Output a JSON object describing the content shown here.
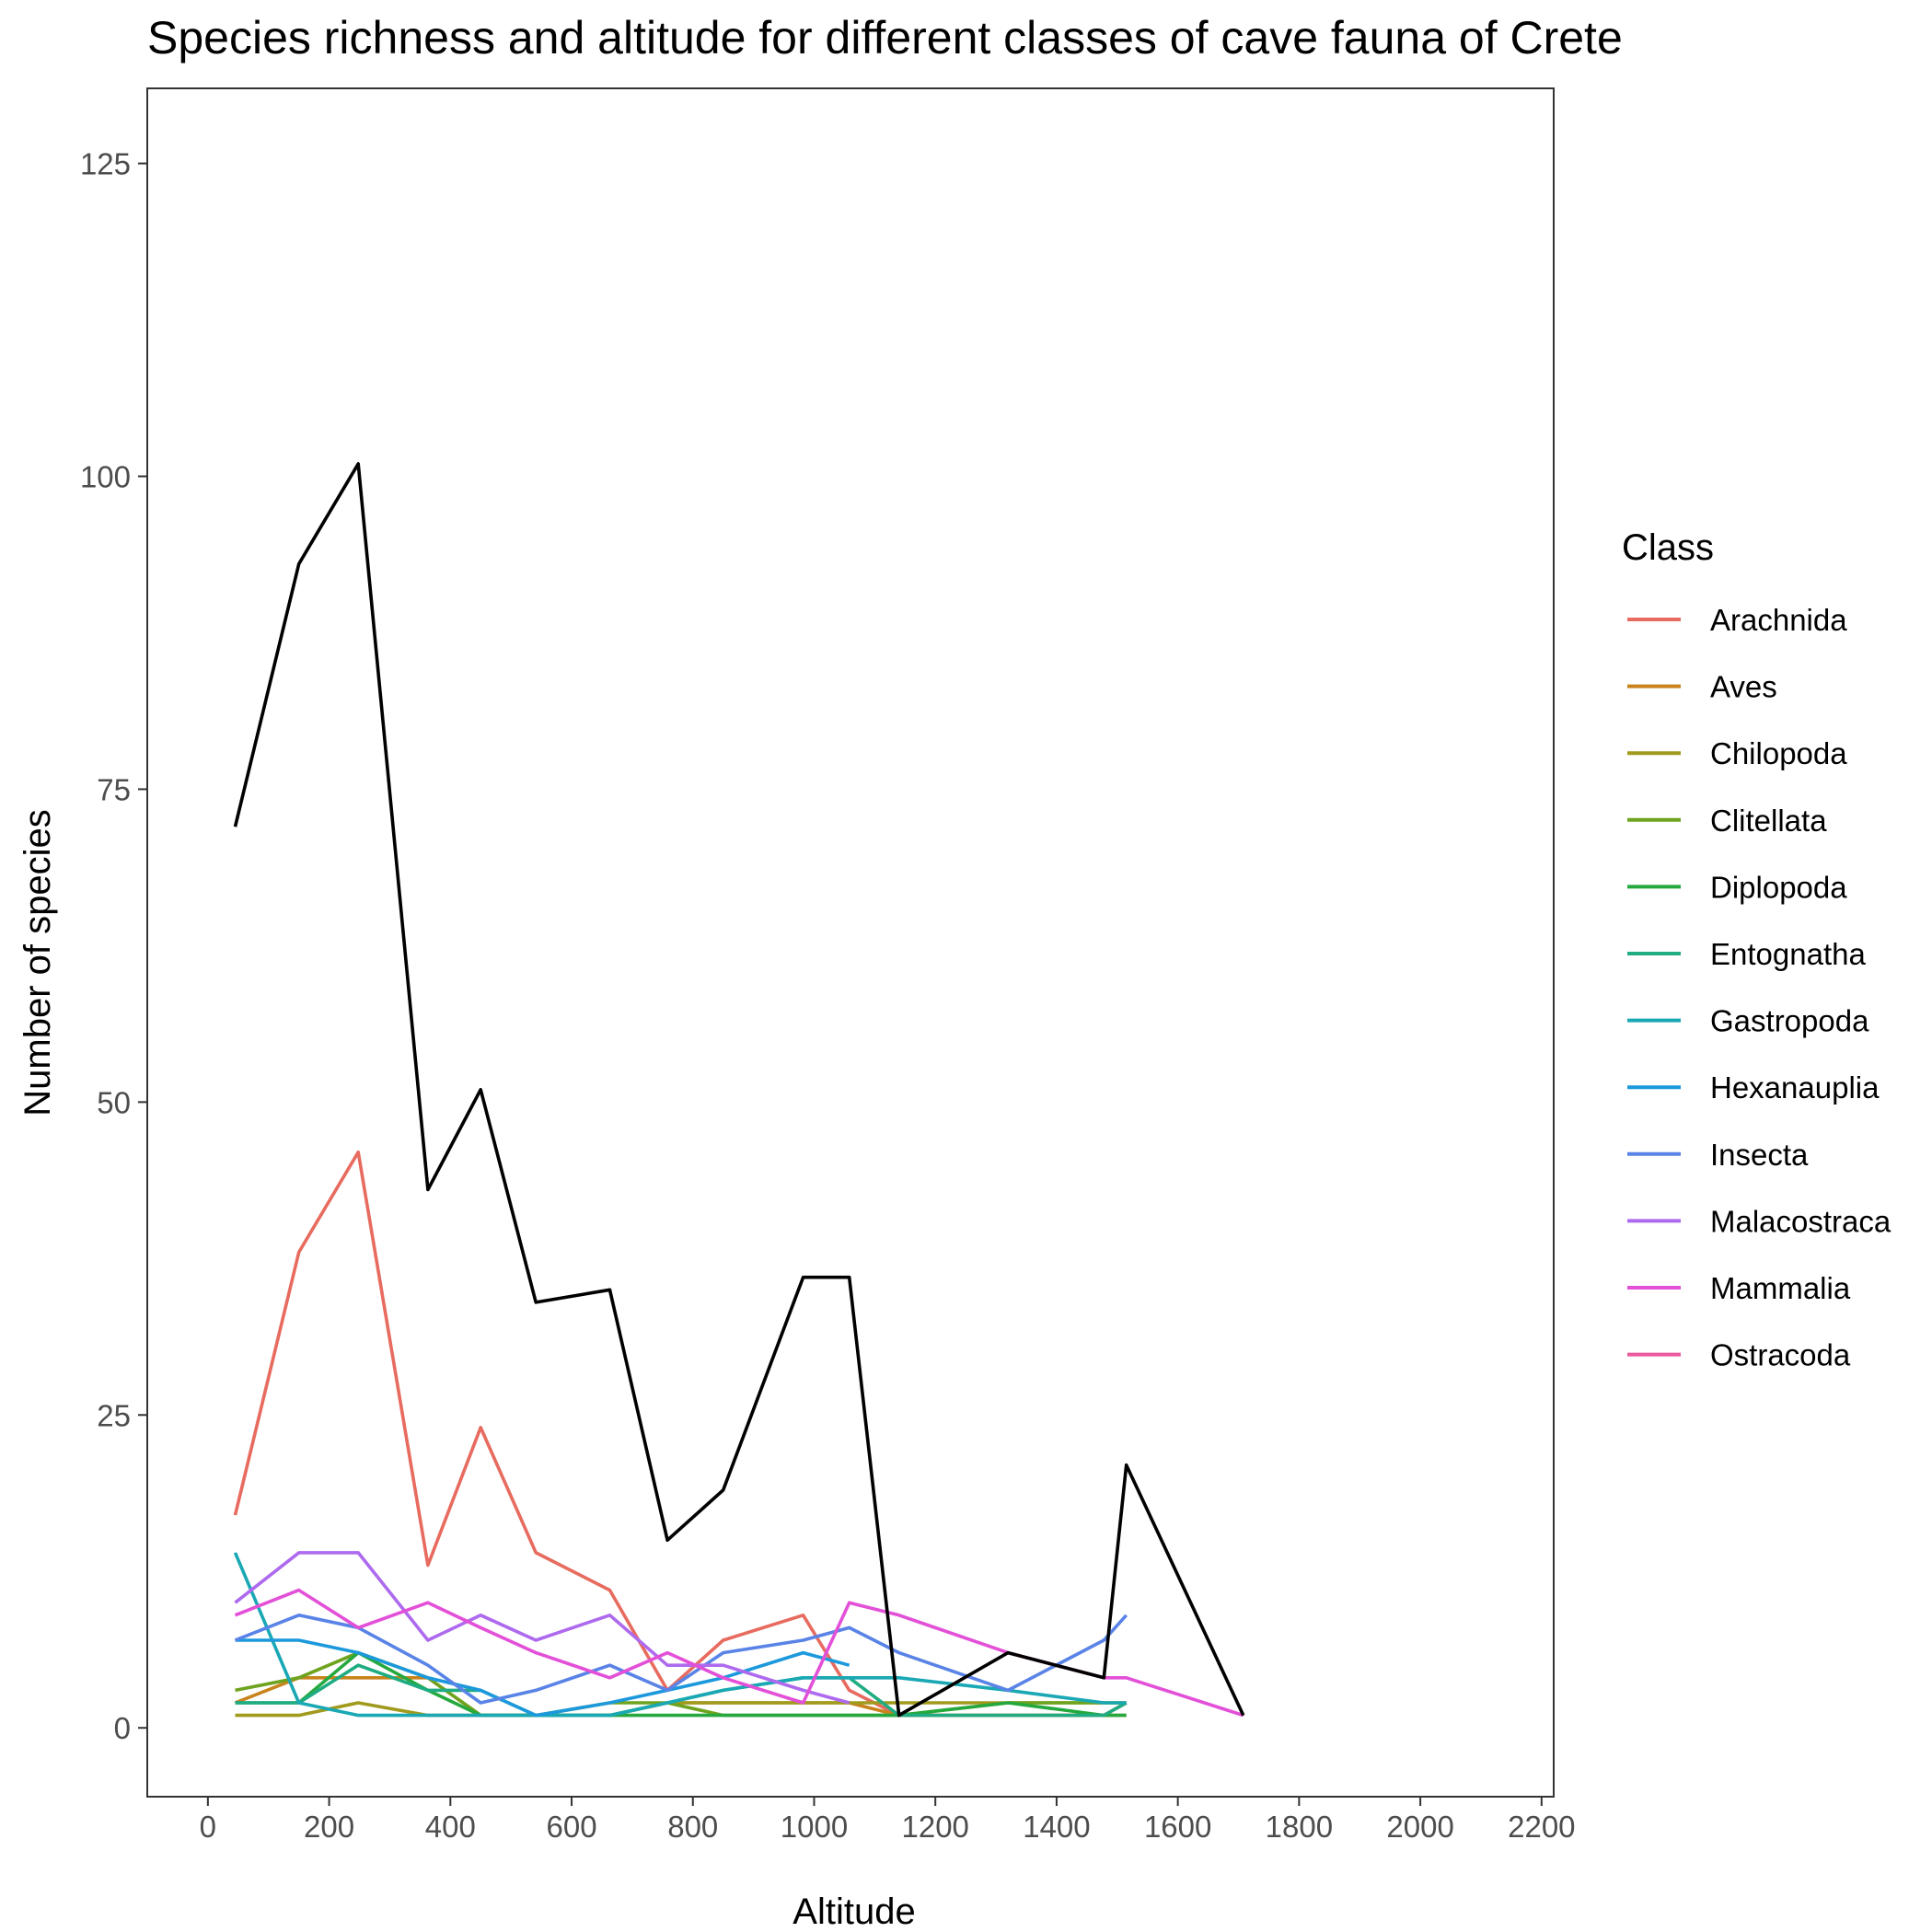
{
  "chart_data": {
    "type": "line",
    "title": "Species richness and altitude for different classes of cave fauna of Crete",
    "xlabel": "Altitude",
    "ylabel": "Number of species",
    "xlim": [
      -100,
      2220
    ],
    "ylim": [
      -5.5,
      131
    ],
    "x_ticks": [
      "0",
      "200",
      "400",
      "600",
      "800",
      "1000",
      "1200",
      "1400",
      "1600",
      "1800",
      "2000",
      "2200"
    ],
    "x_tick_values": [
      0,
      200,
      400,
      600,
      800,
      1000,
      1200,
      1400,
      1600,
      1800,
      2000,
      2200
    ],
    "y_ticks": [
      "0",
      "25",
      "50",
      "75",
      "100",
      "125"
    ],
    "y_tick_values": [
      0,
      25,
      50,
      75,
      100,
      125
    ],
    "grid": false,
    "legend_title": "Class",
    "legend_position": "right",
    "series": [
      {
        "name": "",
        "color": "#000000",
        "x": [
          45,
          150,
          248,
          363,
          450,
          541,
          663,
          758,
          850,
          982,
          1058,
          1140,
          1320,
          1478,
          1515,
          1708
        ],
        "y": [
          72,
          93,
          101,
          43,
          51,
          34,
          35,
          15,
          19,
          36,
          36,
          1,
          6,
          4,
          21,
          1
        ]
      },
      {
        "name": "Arachnida",
        "color": "#E76B5F",
        "x": [
          45,
          150,
          248,
          363,
          450,
          541,
          663,
          758,
          850,
          982,
          1058,
          1140,
          1320,
          1478,
          1515
        ],
        "y": [
          17,
          38,
          46,
          13,
          24,
          14,
          11,
          3,
          7,
          9,
          3,
          1,
          1,
          1,
          2
        ]
      },
      {
        "name": "Aves",
        "color": "#C8831C",
        "x": [
          45,
          150,
          248,
          363,
          450,
          541,
          663,
          758,
          850,
          982,
          1058,
          1140,
          1320,
          1478,
          1515
        ],
        "y": [
          2,
          4,
          4,
          4,
          1,
          1,
          1,
          2,
          2,
          2,
          2,
          1,
          1,
          1,
          1
        ]
      },
      {
        "name": "Chilopoda",
        "color": "#A09A1D",
        "x": [
          45,
          150,
          248,
          363,
          450,
          541,
          663,
          758,
          850,
          982,
          1058,
          1140,
          1320,
          1478,
          1515
        ],
        "y": [
          1,
          1,
          2,
          1,
          1,
          1,
          1,
          2,
          2,
          2,
          2,
          2,
          2,
          2,
          2
        ]
      },
      {
        "name": "Clitellata",
        "color": "#6EA31F",
        "x": [
          45,
          150,
          248,
          363,
          450,
          541,
          663,
          758,
          850,
          982,
          1058,
          1140,
          1320,
          1478,
          1515
        ],
        "y": [
          3,
          4,
          6,
          4,
          1,
          1,
          2,
          2,
          1,
          1,
          1,
          1,
          2,
          2,
          2
        ]
      },
      {
        "name": "Diplopoda",
        "color": "#25A93F",
        "x": [
          45,
          150,
          248,
          363,
          450,
          541,
          663,
          758,
          850,
          982,
          1058,
          1140,
          1320,
          1478,
          1515
        ],
        "y": [
          2,
          2,
          6,
          3,
          1,
          1,
          1,
          1,
          1,
          1,
          1,
          1,
          2,
          1,
          1
        ]
      },
      {
        "name": "Entognatha",
        "color": "#1FAC82",
        "x": [
          45,
          150,
          248,
          363,
          450,
          541,
          663,
          758,
          850,
          982,
          1058,
          1140,
          1320,
          1478,
          1515
        ],
        "y": [
          2,
          2,
          5,
          3,
          3,
          1,
          1,
          2,
          3,
          4,
          4,
          1,
          1,
          1,
          2
        ]
      },
      {
        "name": "Gastropoda",
        "color": "#1AA8B5",
        "x": [
          45,
          150,
          248,
          363,
          450,
          541,
          663,
          758,
          850,
          982,
          1058,
          1140,
          1320,
          1478,
          1515
        ],
        "y": [
          14,
          2,
          1,
          1,
          1,
          1,
          1,
          2,
          3,
          4,
          4,
          4,
          3,
          2,
          2
        ]
      },
      {
        "name": "Hexanauplia",
        "color": "#1C99DC",
        "x": [
          45,
          150,
          248,
          363,
          450,
          541,
          663,
          758,
          850,
          982,
          1058
        ],
        "y": [
          7,
          7,
          6,
          4,
          3,
          1,
          2,
          3,
          4,
          6,
          5
        ]
      },
      {
        "name": "Insecta",
        "color": "#5983E6",
        "x": [
          45,
          150,
          248,
          363,
          450,
          541,
          663,
          758,
          850,
          982,
          1058,
          1140,
          1320,
          1478,
          1515
        ],
        "y": [
          7,
          9,
          8,
          5,
          2,
          3,
          5,
          3,
          6,
          7,
          8,
          6,
          3,
          7,
          9
        ]
      },
      {
        "name": "Malacostraca",
        "color": "#AE6AEE",
        "x": [
          45,
          150,
          248,
          363,
          450,
          541,
          663,
          758,
          850,
          982,
          1058
        ],
        "y": [
          10,
          14,
          14,
          7,
          9,
          7,
          9,
          5,
          5,
          3,
          2
        ]
      },
      {
        "name": "Mammalia",
        "color": "#E350D8",
        "x": [
          45,
          150,
          248,
          363,
          450,
          541,
          663,
          758,
          850,
          982,
          1058,
          1140,
          1320,
          1478,
          1515,
          1708
        ],
        "y": [
          9,
          11,
          8,
          10,
          8,
          6,
          4,
          6,
          4,
          2,
          10,
          9,
          6,
          4,
          4,
          1
        ]
      },
      {
        "name": "Ostracoda",
        "color": "#EC5A9E",
        "x": [],
        "y": []
      }
    ]
  }
}
